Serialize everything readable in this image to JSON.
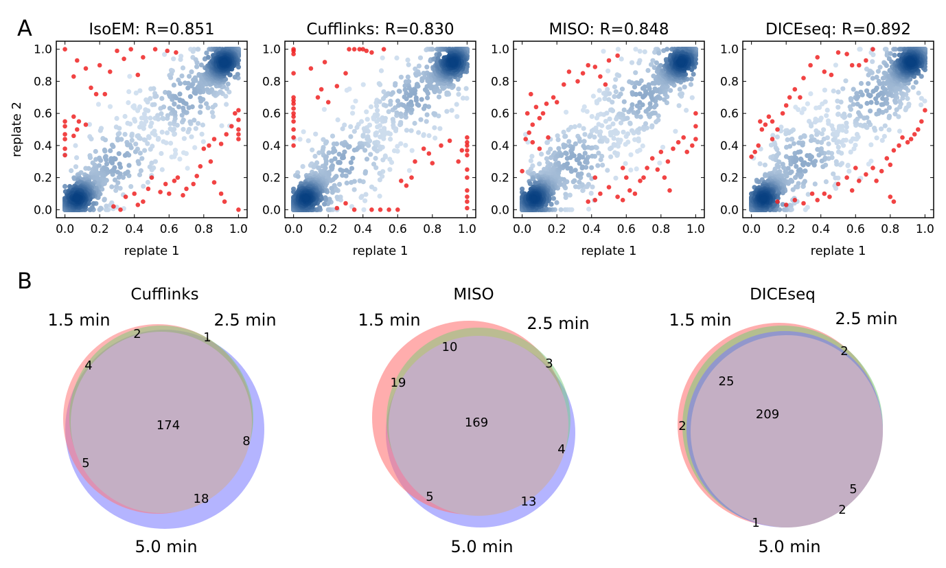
{
  "figure": {
    "panel_a_letter": "A",
    "panel_b_letter": "B"
  },
  "chart_data": [
    {
      "type": "scatter",
      "title": "IsoEM: R=0.851",
      "xlabel": "replate 1",
      "ylabel": "replate 2",
      "xlim": [
        -0.05,
        1.05
      ],
      "ylim": [
        -0.05,
        1.05
      ],
      "ticks": [
        "0.0",
        "0.2",
        "0.4",
        "0.6",
        "0.8",
        "1.0"
      ],
      "pearson_r": 0.851,
      "outliers": [
        [
          0.0,
          1.0
        ],
        [
          0.07,
          0.93
        ],
        [
          0.05,
          0.83
        ],
        [
          0.12,
          0.88
        ],
        [
          0.15,
          0.76
        ],
        [
          0.18,
          0.72
        ],
        [
          0.2,
          0.9
        ],
        [
          0.23,
          0.72
        ],
        [
          0.26,
          0.86
        ],
        [
          0.3,
          0.99
        ],
        [
          0.34,
          0.94
        ],
        [
          0.38,
          1.0
        ],
        [
          0.45,
          0.95
        ],
        [
          0.42,
          0.84
        ],
        [
          0.52,
          1.0
        ],
        [
          0.59,
          0.99
        ],
        [
          0.64,
          0.98
        ],
        [
          0.0,
          0.55
        ],
        [
          0.0,
          0.52
        ],
        [
          0.0,
          0.47
        ],
        [
          0.0,
          0.44
        ],
        [
          0.0,
          0.38
        ],
        [
          0.0,
          0.34
        ],
        [
          0.05,
          0.46
        ],
        [
          0.07,
          0.5
        ],
        [
          0.05,
          0.58
        ],
        [
          0.12,
          0.53
        ],
        [
          0.08,
          0.55
        ],
        [
          1.0,
          0.62
        ],
        [
          1.0,
          0.56
        ],
        [
          1.0,
          0.5
        ],
        [
          1.0,
          0.47
        ],
        [
          1.0,
          0.44
        ],
        [
          0.98,
          0.6
        ],
        [
          0.96,
          0.52
        ],
        [
          0.93,
          0.47
        ],
        [
          0.9,
          0.41
        ],
        [
          0.86,
          0.44
        ],
        [
          0.83,
          0.4
        ],
        [
          0.8,
          0.38
        ],
        [
          0.84,
          0.3
        ],
        [
          0.78,
          0.27
        ],
        [
          0.76,
          0.21
        ],
        [
          0.74,
          0.16
        ],
        [
          0.7,
          0.13
        ],
        [
          0.68,
          0.09
        ],
        [
          0.65,
          0.2
        ],
        [
          0.63,
          0.18
        ],
        [
          0.6,
          0.1
        ],
        [
          0.58,
          0.16
        ],
        [
          0.55,
          0.11
        ],
        [
          0.5,
          0.2
        ],
        [
          0.48,
          0.13
        ],
        [
          0.45,
          0.05
        ],
        [
          0.42,
          0.03
        ],
        [
          0.4,
          0.1
        ],
        [
          0.35,
          0.08
        ],
        [
          0.32,
          0.0
        ],
        [
          0.28,
          0.02
        ],
        [
          0.9,
          0.1
        ],
        [
          0.92,
          0.05
        ],
        [
          1.0,
          0.0
        ],
        [
          0.86,
          0.17
        ]
      ]
    },
    {
      "type": "scatter",
      "title": "Cufflinks: R=0.830",
      "xlabel": "replate 1",
      "ylabel": "",
      "xlim": [
        -0.05,
        1.05
      ],
      "ylim": [
        -0.05,
        1.05
      ],
      "ticks": [
        "0.0",
        "0.2",
        "0.4",
        "0.6",
        "0.8",
        "1.0"
      ],
      "pearson_r": 0.83,
      "outliers": [
        [
          0.0,
          1.0
        ],
        [
          0.0,
          0.99
        ],
        [
          0.0,
          0.97
        ],
        [
          0.0,
          0.85
        ],
        [
          0.0,
          0.7
        ],
        [
          0.0,
          0.68
        ],
        [
          0.0,
          0.66
        ],
        [
          0.0,
          0.63
        ],
        [
          0.0,
          0.6
        ],
        [
          0.0,
          0.58
        ],
        [
          0.0,
          0.55
        ],
        [
          0.0,
          0.5
        ],
        [
          0.0,
          0.45
        ],
        [
          0.0,
          0.4
        ],
        [
          0.1,
          0.88
        ],
        [
          0.14,
          0.7
        ],
        [
          0.16,
          0.75
        ],
        [
          0.2,
          0.67
        ],
        [
          0.18,
          0.92
        ],
        [
          0.25,
          0.77
        ],
        [
          0.32,
          1.0
        ],
        [
          0.35,
          1.0
        ],
        [
          0.38,
          1.0
        ],
        [
          0.4,
          1.0
        ],
        [
          0.42,
          0.99
        ],
        [
          0.45,
          0.98
        ],
        [
          0.52,
          1.0
        ],
        [
          0.3,
          0.85
        ],
        [
          1.0,
          0.42
        ],
        [
          1.0,
          0.45
        ],
        [
          1.0,
          0.4
        ],
        [
          1.0,
          0.37
        ],
        [
          1.0,
          0.34
        ],
        [
          1.0,
          0.25
        ],
        [
          1.0,
          0.2
        ],
        [
          1.0,
          0.12
        ],
        [
          1.0,
          0.08
        ],
        [
          1.0,
          0.05
        ],
        [
          1.0,
          0.01
        ],
        [
          0.97,
          0.37
        ],
        [
          0.95,
          0.3
        ],
        [
          0.9,
          0.43
        ],
        [
          0.85,
          0.4
        ],
        [
          0.8,
          0.29
        ],
        [
          0.78,
          0.35
        ],
        [
          0.75,
          0.38
        ],
        [
          0.7,
          0.3
        ],
        [
          0.68,
          0.2
        ],
        [
          0.65,
          0.15
        ],
        [
          0.62,
          0.18
        ],
        [
          0.6,
          0.0
        ],
        [
          0.55,
          0.0
        ],
        [
          0.5,
          0.0
        ],
        [
          0.45,
          0.0
        ],
        [
          0.35,
          0.0
        ],
        [
          0.25,
          0.01
        ],
        [
          0.3,
          0.04
        ]
      ]
    },
    {
      "type": "scatter",
      "title": "MISO: R=0.848",
      "xlabel": "replate 1",
      "ylabel": "",
      "xlim": [
        -0.05,
        1.05
      ],
      "ylim": [
        -0.05,
        1.05
      ],
      "ticks": [
        "0.0",
        "0.2",
        "0.4",
        "0.6",
        "0.8",
        "1.0"
      ],
      "pearson_r": 0.848,
      "outliers": [
        [
          0.02,
          0.44
        ],
        [
          0.04,
          0.48
        ],
        [
          0.06,
          0.53
        ],
        [
          0.03,
          0.6
        ],
        [
          0.05,
          0.72
        ],
        [
          0.08,
          0.64
        ],
        [
          0.1,
          0.57
        ],
        [
          0.12,
          0.6
        ],
        [
          0.14,
          0.66
        ],
        [
          0.18,
          0.7
        ],
        [
          0.2,
          0.67
        ],
        [
          0.24,
          0.78
        ],
        [
          0.27,
          0.86
        ],
        [
          0.32,
          0.8
        ],
        [
          0.35,
          0.85
        ],
        [
          0.38,
          0.9
        ],
        [
          0.42,
          0.89
        ],
        [
          0.45,
          0.83
        ],
        [
          0.48,
          0.78
        ],
        [
          0.5,
          0.93
        ],
        [
          0.55,
          0.96
        ],
        [
          0.0,
          0.24
        ],
        [
          0.06,
          0.42
        ],
        [
          0.1,
          0.38
        ],
        [
          0.15,
          0.45
        ],
        [
          1.0,
          0.6
        ],
        [
          1.0,
          0.52
        ],
        [
          1.0,
          0.44
        ],
        [
          0.98,
          0.4
        ],
        [
          0.95,
          0.36
        ],
        [
          0.93,
          0.45
        ],
        [
          0.9,
          0.42
        ],
        [
          0.87,
          0.38
        ],
        [
          0.84,
          0.3
        ],
        [
          0.8,
          0.36
        ],
        [
          0.78,
          0.25
        ],
        [
          0.75,
          0.32
        ],
        [
          0.72,
          0.26
        ],
        [
          0.7,
          0.2
        ],
        [
          0.68,
          0.18
        ],
        [
          0.65,
          0.1
        ],
        [
          0.62,
          0.12
        ],
        [
          0.6,
          0.2
        ],
        [
          0.58,
          0.06
        ],
        [
          0.55,
          0.08
        ],
        [
          0.5,
          0.14
        ],
        [
          0.45,
          0.1
        ],
        [
          0.42,
          0.06
        ],
        [
          0.38,
          0.05
        ],
        [
          0.42,
          0.2
        ],
        [
          0.85,
          0.12
        ],
        [
          0.82,
          0.2
        ],
        [
          0.58,
          0.26
        ]
      ]
    },
    {
      "type": "scatter",
      "title": "DICEseq: R=0.892",
      "xlabel": "replate 1",
      "ylabel": "",
      "xlim": [
        -0.05,
        1.05
      ],
      "ylim": [
        -0.05,
        1.05
      ],
      "ticks": [
        "0.0",
        "0.2",
        "0.4",
        "0.6",
        "0.8",
        "1.0"
      ],
      "pearson_r": 0.892,
      "outliers": [
        [
          0.02,
          0.36
        ],
        [
          0.04,
          0.4
        ],
        [
          0.06,
          0.5
        ],
        [
          0.05,
          0.55
        ],
        [
          0.08,
          0.53
        ],
        [
          0.1,
          0.58
        ],
        [
          0.12,
          0.55
        ],
        [
          0.15,
          0.5
        ],
        [
          0.18,
          0.6
        ],
        [
          0.2,
          0.65
        ],
        [
          0.22,
          0.7
        ],
        [
          0.25,
          0.75
        ],
        [
          0.28,
          0.7
        ],
        [
          0.3,
          0.82
        ],
        [
          0.34,
          0.9
        ],
        [
          0.38,
          0.95
        ],
        [
          0.42,
          0.86
        ],
        [
          0.46,
          0.84
        ],
        [
          0.5,
          0.98
        ],
        [
          0.55,
          0.97
        ],
        [
          0.58,
          0.9
        ],
        [
          0.62,
          0.9
        ],
        [
          0.66,
          0.93
        ],
        [
          0.7,
          1.0
        ],
        [
          0.0,
          0.33
        ],
        [
          0.12,
          0.44
        ],
        [
          1.0,
          0.62
        ],
        [
          0.98,
          0.55
        ],
        [
          0.96,
          0.5
        ],
        [
          0.94,
          0.47
        ],
        [
          0.92,
          0.44
        ],
        [
          0.9,
          0.42
        ],
        [
          0.87,
          0.45
        ],
        [
          0.85,
          0.4
        ],
        [
          0.82,
          0.37
        ],
        [
          0.8,
          0.28
        ],
        [
          0.78,
          0.32
        ],
        [
          0.75,
          0.24
        ],
        [
          0.72,
          0.18
        ],
        [
          0.7,
          0.26
        ],
        [
          0.66,
          0.22
        ],
        [
          0.62,
          0.18
        ],
        [
          0.58,
          0.12
        ],
        [
          0.55,
          0.2
        ],
        [
          0.5,
          0.16
        ],
        [
          0.45,
          0.08
        ],
        [
          0.42,
          0.1
        ],
        [
          0.38,
          0.06
        ],
        [
          0.35,
          0.1
        ],
        [
          0.3,
          0.04
        ],
        [
          0.25,
          0.06
        ],
        [
          0.2,
          0.03
        ],
        [
          0.15,
          0.05
        ],
        [
          0.8,
          0.08
        ],
        [
          0.82,
          0.05
        ],
        [
          0.6,
          0.26
        ]
      ]
    },
    {
      "type": "venn",
      "title": "Cufflinks",
      "sets": [
        "1.5 min",
        "2.5 min",
        "5.0 min"
      ],
      "region_values": [
        "2",
        "1",
        "4",
        "174",
        "8",
        "5",
        "18"
      ],
      "colors": [
        "#ff7777",
        "#77cc77",
        "#7777ff"
      ]
    },
    {
      "type": "venn",
      "title": "MISO",
      "sets": [
        "1.5 min",
        "2.5 min",
        "5.0 min"
      ],
      "region_values": [
        "10",
        "3",
        "19",
        "169",
        "4",
        "5",
        "13"
      ],
      "colors": [
        "#ff7777",
        "#77cc77",
        "#7777ff"
      ]
    },
    {
      "type": "venn",
      "title": "DICEseq",
      "sets": [
        "1.5 min",
        "2.5 min",
        "5.0 min"
      ],
      "region_values": [
        "2",
        "25",
        "209",
        "2",
        "5",
        "2",
        "1"
      ],
      "colors": [
        "#ff7777",
        "#77cc77",
        "#7777ff"
      ]
    }
  ]
}
